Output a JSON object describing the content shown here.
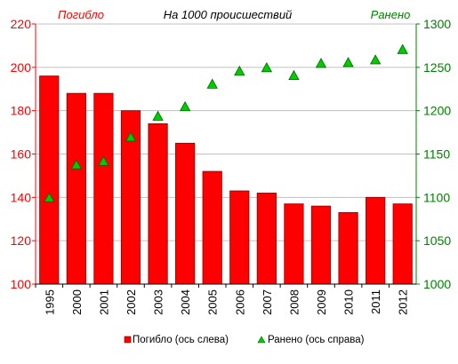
{
  "chart_data": {
    "type": "bar+scatter",
    "title": "На 1000 происшествий",
    "left_axis_title": "Погибло",
    "right_axis_title": "Ранено",
    "categories": [
      "1995",
      "2000",
      "2001",
      "2002",
      "2003",
      "2004",
      "2005",
      "2006",
      "2007",
      "2008",
      "2009",
      "2010",
      "2011",
      "2012"
    ],
    "series": [
      {
        "name": "Погибло (ось слева)",
        "type": "bar",
        "axis": "left",
        "color": "#ff0000",
        "values": [
          196,
          188,
          188,
          180,
          174,
          165,
          152,
          143,
          142,
          137,
          136,
          133,
          140,
          137
        ]
      },
      {
        "name": "Ранено (ось справа)",
        "type": "scatter",
        "marker": "triangle",
        "axis": "right",
        "color": "#00cc00",
        "values": [
          1099,
          1137,
          1141,
          1169,
          1193,
          1204,
          1230,
          1245,
          1249,
          1240,
          1254,
          1255,
          1258,
          1270
        ]
      }
    ],
    "y_left": {
      "min": 100,
      "max": 220,
      "step": 20,
      "ticks": [
        "100",
        "120",
        "140",
        "160",
        "180",
        "200",
        "220"
      ],
      "color": "#ff0000"
    },
    "y_right": {
      "min": 1000,
      "max": 1300,
      "step": 50,
      "ticks": [
        "1000",
        "1050",
        "1100",
        "1150",
        "1200",
        "1250",
        "1300"
      ],
      "color": "#008000"
    },
    "grid": true,
    "legend_position": "bottom"
  }
}
